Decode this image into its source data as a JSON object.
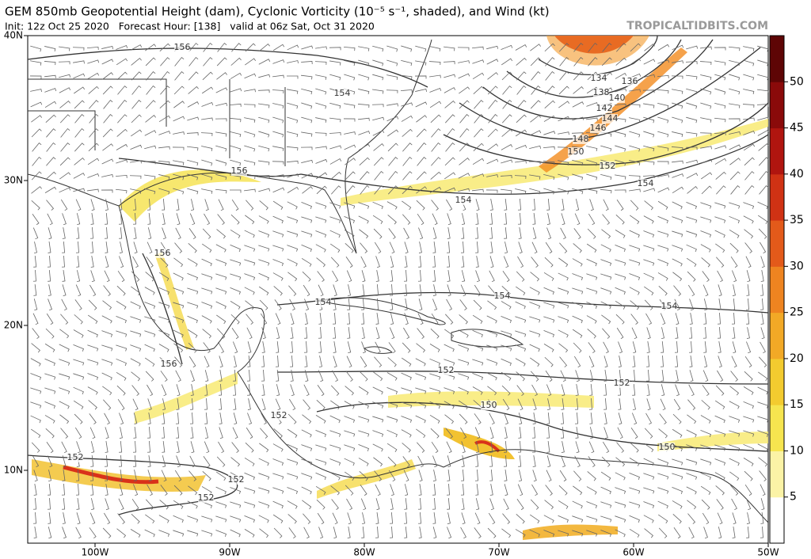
{
  "header": {
    "title": "GEM 850mb Geopotential Height (dam), Cyclonic Vorticity (10⁻⁵ s⁻¹, shaded), and Wind (kt)",
    "subtitle": "Init: 12z Oct 25 2020   Forecast Hour: [138]   valid at 06z Sat, Oct 31 2020",
    "site": "TROPICALTIDBITS.COM"
  },
  "map": {
    "lat_labels": [
      "40N",
      "30N",
      "20N",
      "10N"
    ],
    "lon_labels": [
      "100W",
      "90W",
      "80W",
      "70W",
      "60W",
      "50W"
    ],
    "contour_labels": [
      "156",
      "154",
      "156",
      "154",
      "154",
      "152",
      "150",
      "148",
      "146",
      "144",
      "142",
      "140",
      "138",
      "136",
      "134",
      "156",
      "154",
      "154",
      "154",
      "156",
      "152",
      "152",
      "152",
      "150",
      "150",
      "152",
      "152",
      "152"
    ]
  },
  "colorbar": {
    "ticks": [
      50,
      45,
      40,
      35,
      30,
      25,
      20,
      15,
      10,
      5
    ]
  }
}
